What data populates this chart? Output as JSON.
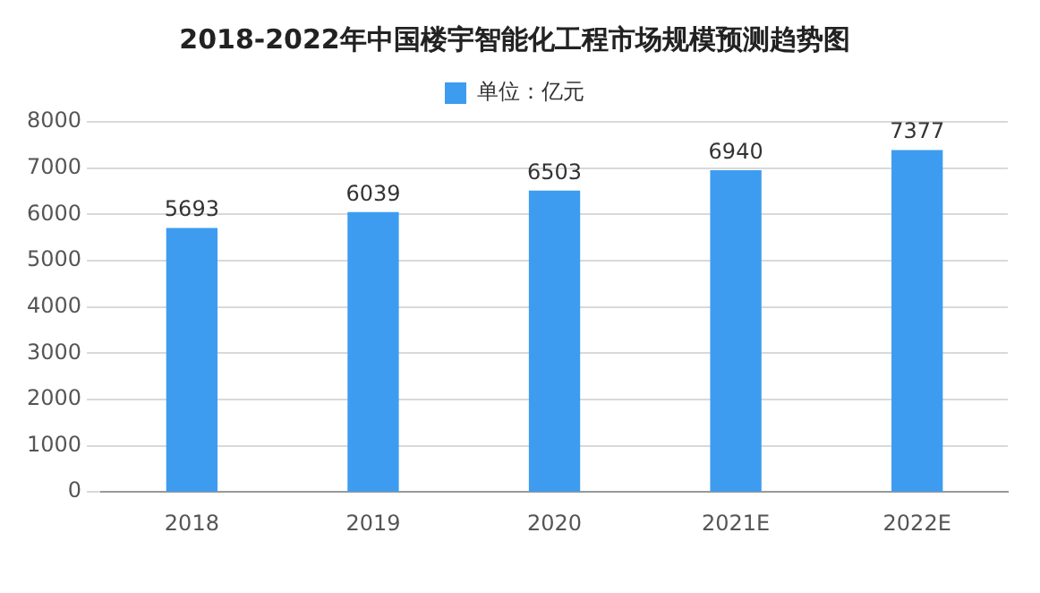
{
  "chart_data": {
    "type": "bar",
    "title": "2018-2022年中国楼宇智能化工程市场规模预测趋势图",
    "categories": [
      "2018",
      "2019",
      "2020",
      "2021E",
      "2022E"
    ],
    "series": [
      {
        "name": "单位：亿元",
        "color": "#3d9cf0",
        "values": [
          5693,
          6039,
          6503,
          6940,
          7377
        ]
      }
    ],
    "ylim": [
      0,
      8000
    ],
    "yticks": [
      0,
      1000,
      2000,
      3000,
      4000,
      5000,
      6000,
      7000,
      8000
    ],
    "grid": "y",
    "legend": "top",
    "data_labels": true
  }
}
